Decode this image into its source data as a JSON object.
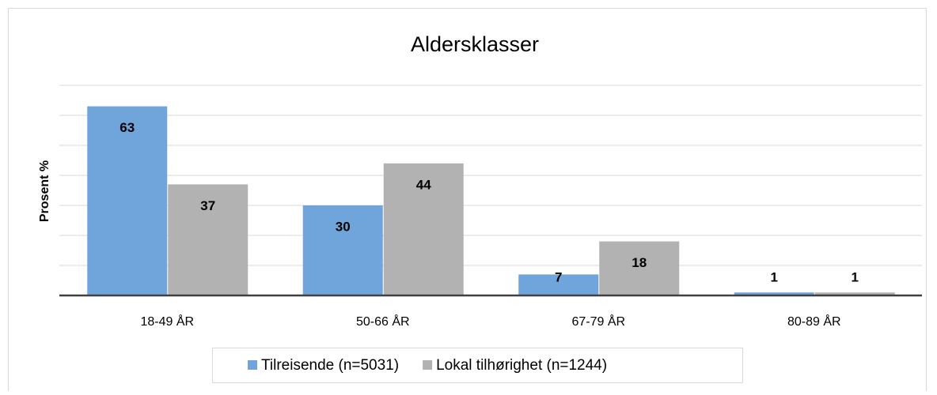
{
  "chart_data": {
    "type": "bar",
    "title": "Aldersklasser",
    "y_label": "Prosent %",
    "categories": [
      "18-49 ÅR",
      "50-66 ÅR",
      "67-79 ÅR",
      "80-89 ÅR"
    ],
    "series": [
      {
        "name": "Tilreisende (n=5031)",
        "color": "#6fa5db",
        "values": [
          63,
          30,
          7,
          1
        ]
      },
      {
        "name": "Lokal tilhørighet (n=1244)",
        "color": "#b2b2b2",
        "values": [
          37,
          44,
          18,
          1
        ]
      }
    ],
    "ylim": [
      0,
      70
    ],
    "yticks": [
      0,
      10,
      20,
      30,
      40,
      50,
      60,
      70
    ],
    "grid": true,
    "legend": "bottom"
  }
}
